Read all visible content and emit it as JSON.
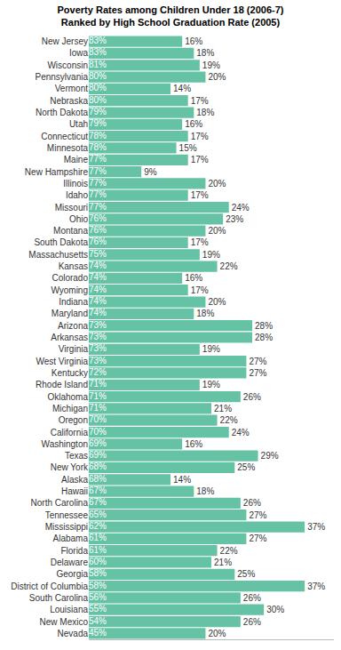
{
  "chart_data": {
    "type": "bar",
    "title": "Poverty Rates among Children Under 18 (2006-7)",
    "subtitle": "Ranked by High School Graduation Rate (2005)",
    "orientation": "horizontal",
    "color": "#66c2a5",
    "grid": false,
    "tick_labels": "y",
    "data_labels": true,
    "xlim": [
      0,
      42
    ],
    "xticks": [],
    "categories": [
      "New Jersey",
      "Iowa",
      "Wisconsin",
      "Pennsylvania",
      "Vermont",
      "Nebraska",
      "North Dakota",
      "Utah",
      "Connecticut",
      "Minnesota",
      "Maine",
      "New Hampshire",
      "Illinois",
      "Idaho",
      "Missouri",
      "Ohio",
      "Montana",
      "South Dakota",
      "Massachusetts",
      "Kansas",
      "Colorado",
      "Wyoming",
      "Indiana",
      "Maryland",
      "Arizona",
      "Arkansas",
      "Virginia",
      "West Virginia",
      "Kentucky",
      "Rhode Island",
      "Oklahoma",
      "Michigan",
      "Oregon",
      "California",
      "Washington",
      "Texas",
      "New York",
      "Alaska",
      "Hawaii",
      "North Carolina",
      "Tennessee",
      "Mississippi",
      "Alabama",
      "Florida",
      "Delaware",
      "Georgia",
      "District of Columbia",
      "South Carolina",
      "Louisiana",
      "New Mexico",
      "Nevada"
    ],
    "values": [
      16,
      18,
      19,
      20,
      14,
      17,
      18,
      16,
      17,
      15,
      17,
      9,
      20,
      17,
      24,
      23,
      20,
      17,
      19,
      22,
      16,
      17,
      20,
      18,
      28,
      28,
      19,
      27,
      27,
      19,
      26,
      21,
      22,
      24,
      16,
      29,
      25,
      14,
      18,
      26,
      27,
      37,
      27,
      22,
      21,
      25,
      37,
      26,
      30,
      26,
      20
    ],
    "value_labels": [
      "16%",
      "18%",
      "19%",
      "20%",
      "14%",
      "17%",
      "18%",
      "16%",
      "17%",
      "15%",
      "17%",
      "9%",
      "20%",
      "17%",
      "24%",
      "23%",
      "20%",
      "17%",
      "19%",
      "22%",
      "16%",
      "17%",
      "20%",
      "18%",
      "28%",
      "28%",
      "19%",
      "27%",
      "27%",
      "19%",
      "26%",
      "21%",
      "22%",
      "24%",
      "16%",
      "29%",
      "25%",
      "14%",
      "18%",
      "26%",
      "27%",
      "37%",
      "27%",
      "22%",
      "21%",
      "25%",
      "37%",
      "26%",
      "30%",
      "26%",
      "20%"
    ],
    "graduation_rates": [
      83,
      83,
      81,
      80,
      80,
      80,
      79,
      79,
      78,
      78,
      77,
      77,
      77,
      77,
      77,
      76,
      76,
      76,
      75,
      74,
      74,
      74,
      74,
      74,
      73,
      73,
      73,
      73,
      72,
      71,
      71,
      71,
      70,
      70,
      69,
      69,
      68,
      68,
      67,
      67,
      65,
      62,
      61,
      61,
      60,
      58,
      58,
      56,
      55,
      54,
      45
    ],
    "graduation_labels": [
      "83%",
      "83%",
      "81%",
      "80%",
      "80%",
      "80%",
      "79%",
      "79%",
      "78%",
      "78%",
      "77%",
      "77%",
      "77%",
      "77%",
      "77%",
      "76%",
      "76%",
      "76%",
      "75%",
      "74%",
      "74%",
      "74%",
      "74%",
      "74%",
      "73%",
      "73%",
      "73%",
      "73%",
      "72%",
      "71%",
      "71%",
      "71%",
      "70%",
      "70%",
      "69%",
      "69%",
      "68%",
      "68%",
      "67%",
      "67%",
      "65%",
      "62%",
      "61%",
      "61%",
      "60%",
      "58%",
      "58%",
      "56%",
      "55%",
      "54%",
      "45%"
    ]
  }
}
